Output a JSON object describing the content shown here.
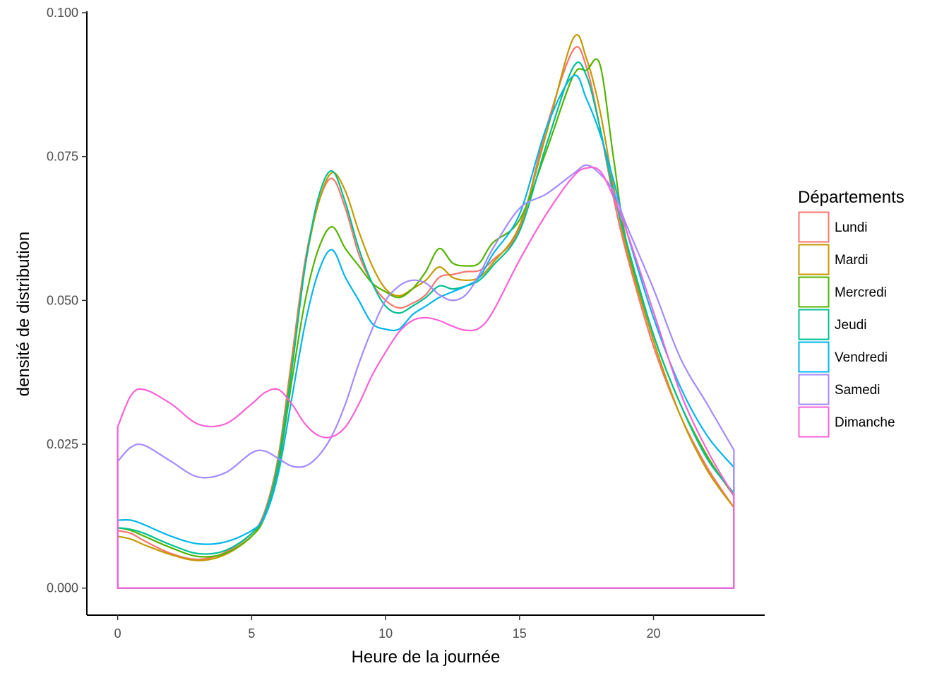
{
  "chart_data": {
    "type": "area",
    "subtype": "density",
    "xlabel": "Heure de la journée",
    "ylabel": "densité de distribution",
    "xlim": [
      -1.15,
      24.15
    ],
    "ylim": [
      -0.0047,
      0.1
    ],
    "x_ticks": [
      0,
      5,
      10,
      15,
      20
    ],
    "y_ticks": [
      0.0,
      0.025,
      0.05,
      0.075,
      0.1
    ],
    "y_tick_labels": [
      "0.000",
      "0.025",
      "0.050",
      "0.075",
      "0.100"
    ],
    "grid": false,
    "legend": {
      "title": "Départements",
      "position": "right"
    },
    "x_range_of_data": [
      0,
      23
    ],
    "series": [
      {
        "name": "Lundi",
        "color": "#F8766D",
        "x": [
          0,
          0.5,
          1,
          2,
          3,
          4,
          5,
          5.5,
          6,
          6.5,
          7,
          7.5,
          8,
          8.5,
          9,
          9.5,
          10,
          10.5,
          11,
          11.5,
          12,
          12.5,
          13,
          13.5,
          14,
          15,
          16,
          17,
          17.5,
          18,
          18.5,
          19,
          20,
          21,
          22,
          23
        ],
        "y": [
          0.01,
          0.0095,
          0.0082,
          0.006,
          0.005,
          0.0062,
          0.0095,
          0.0135,
          0.023,
          0.04,
          0.057,
          0.067,
          0.0712,
          0.066,
          0.058,
          0.053,
          0.05,
          0.0487,
          0.0495,
          0.051,
          0.054,
          0.0545,
          0.055,
          0.0552,
          0.057,
          0.0625,
          0.08,
          0.0935,
          0.0905,
          0.08,
          0.068,
          0.058,
          0.042,
          0.03,
          0.021,
          0.014
        ]
      },
      {
        "name": "Mardi",
        "color": "#C49A00",
        "x": [
          0,
          0.5,
          1,
          2,
          3,
          4,
          5,
          5.5,
          6,
          6.5,
          7,
          7.5,
          8,
          8.5,
          9,
          9.5,
          10,
          10.5,
          11,
          11.5,
          12,
          12.5,
          13,
          13.5,
          14,
          15,
          16,
          17,
          17.5,
          18,
          18.5,
          19,
          20,
          21,
          22,
          23
        ],
        "y": [
          0.009,
          0.0085,
          0.0075,
          0.0058,
          0.0048,
          0.0058,
          0.009,
          0.013,
          0.0225,
          0.039,
          0.056,
          0.067,
          0.0722,
          0.069,
          0.062,
          0.056,
          0.052,
          0.0508,
          0.052,
          0.0535,
          0.0558,
          0.054,
          0.0535,
          0.054,
          0.0565,
          0.063,
          0.079,
          0.0955,
          0.092,
          0.083,
          0.07,
          0.059,
          0.043,
          0.03,
          0.0205,
          0.014
        ]
      },
      {
        "name": "Mercredi",
        "color": "#53B400",
        "x": [
          0,
          0.5,
          1,
          2,
          3,
          4,
          5,
          5.5,
          6,
          6.5,
          7,
          7.5,
          8,
          8.5,
          9,
          9.5,
          10,
          10.5,
          11,
          11.5,
          12,
          12.5,
          13,
          13.5,
          14,
          15,
          16,
          17,
          17.5,
          18,
          18.5,
          19,
          20,
          21,
          22,
          23
        ],
        "y": [
          0.0105,
          0.01,
          0.009,
          0.007,
          0.0055,
          0.006,
          0.009,
          0.0125,
          0.021,
          0.036,
          0.05,
          0.059,
          0.0628,
          0.059,
          0.056,
          0.053,
          0.0515,
          0.0505,
          0.052,
          0.055,
          0.059,
          0.0565,
          0.056,
          0.0565,
          0.06,
          0.064,
          0.076,
          0.089,
          0.09,
          0.091,
          0.075,
          0.06,
          0.044,
          0.032,
          0.023,
          0.016
        ]
      },
      {
        "name": "Jeudi",
        "color": "#00C094",
        "x": [
          0,
          0.5,
          1,
          2,
          3,
          4,
          5,
          5.5,
          6,
          6.5,
          7,
          7.5,
          8,
          8.5,
          9,
          9.5,
          10,
          10.5,
          11,
          11.5,
          12,
          12.5,
          13,
          13.5,
          14,
          15,
          16,
          17,
          17.5,
          18,
          18.5,
          19,
          20,
          21,
          22,
          23
        ],
        "y": [
          0.0105,
          0.0102,
          0.0095,
          0.0075,
          0.006,
          0.0065,
          0.0095,
          0.013,
          0.022,
          0.038,
          0.056,
          0.068,
          0.0725,
          0.067,
          0.059,
          0.053,
          0.049,
          0.0478,
          0.049,
          0.0505,
          0.0525,
          0.052,
          0.0525,
          0.0535,
          0.056,
          0.062,
          0.077,
          0.0905,
          0.089,
          0.08,
          0.069,
          0.06,
          0.044,
          0.032,
          0.0225,
          0.0165
        ]
      },
      {
        "name": "Vendredi",
        "color": "#00B6EB",
        "x": [
          0,
          0.5,
          1,
          2,
          3,
          4,
          5,
          5.5,
          6,
          6.5,
          7,
          7.5,
          8,
          8.5,
          9,
          9.5,
          10,
          10.5,
          11,
          11.5,
          12,
          12.5,
          13,
          13.5,
          14,
          15,
          16,
          17,
          17.5,
          18,
          18.5,
          19,
          20,
          21,
          22,
          23
        ],
        "y": [
          0.0118,
          0.0118,
          0.011,
          0.009,
          0.0077,
          0.008,
          0.01,
          0.0125,
          0.02,
          0.033,
          0.046,
          0.055,
          0.0588,
          0.054,
          0.05,
          0.046,
          0.045,
          0.045,
          0.0475,
          0.049,
          0.0505,
          0.0515,
          0.0525,
          0.054,
          0.058,
          0.065,
          0.08,
          0.089,
          0.085,
          0.079,
          0.071,
          0.062,
          0.047,
          0.035,
          0.0265,
          0.021
        ]
      },
      {
        "name": "Samedi",
        "color": "#A58AFF",
        "x": [
          0,
          0.5,
          1,
          2,
          3,
          4,
          5,
          5.5,
          6,
          6.5,
          7,
          7.5,
          8,
          8.5,
          9,
          9.5,
          10,
          10.5,
          11,
          11.5,
          12,
          12.5,
          13,
          13.5,
          14,
          15,
          16,
          17,
          17.5,
          18,
          18.5,
          19,
          20,
          21,
          22,
          23
        ],
        "y": [
          0.022,
          0.0245,
          0.0248,
          0.022,
          0.0193,
          0.02,
          0.0235,
          0.0238,
          0.0225,
          0.0212,
          0.0212,
          0.023,
          0.0265,
          0.032,
          0.039,
          0.045,
          0.05,
          0.0525,
          0.0535,
          0.053,
          0.051,
          0.05,
          0.051,
          0.0545,
          0.059,
          0.066,
          0.0685,
          0.072,
          0.0735,
          0.072,
          0.069,
          0.063,
          0.052,
          0.04,
          0.032,
          0.024
        ]
      },
      {
        "name": "Dimanche",
        "color": "#FB61D7",
        "x": [
          0,
          0.5,
          1,
          2,
          3,
          4,
          5,
          5.5,
          6,
          6.5,
          7,
          7.5,
          8,
          8.5,
          9,
          9.5,
          10,
          10.5,
          11,
          11.5,
          12,
          12.5,
          13,
          13.5,
          14,
          15,
          16,
          17,
          17.5,
          18,
          18.5,
          19,
          20,
          21,
          22,
          23
        ],
        "y": [
          0.028,
          0.0335,
          0.0345,
          0.032,
          0.0285,
          0.0285,
          0.032,
          0.034,
          0.0345,
          0.032,
          0.0285,
          0.0265,
          0.0263,
          0.028,
          0.032,
          0.037,
          0.041,
          0.0445,
          0.0465,
          0.047,
          0.0465,
          0.0455,
          0.0448,
          0.0452,
          0.048,
          0.057,
          0.065,
          0.0715,
          0.073,
          0.0725,
          0.068,
          0.062,
          0.048,
          0.034,
          0.024,
          0.016
        ]
      }
    ]
  }
}
